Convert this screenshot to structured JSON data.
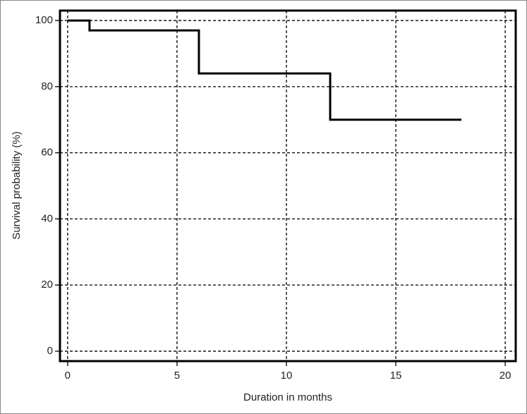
{
  "chart_data": {
    "type": "line",
    "step": "post",
    "x_label": "Duration in months",
    "y_label": "Survival probability (%)",
    "x": [
      0,
      1,
      6,
      12,
      18
    ],
    "series": [
      {
        "color": "#000000",
        "values": [
          100,
          97,
          84,
          70,
          70
        ]
      }
    ],
    "xlim": [
      -0.35,
      20.48
    ],
    "xticks": [
      0,
      5,
      10,
      15,
      20
    ],
    "ylim": [
      -3,
      103
    ],
    "yticks": [
      0,
      20,
      40,
      60,
      80,
      100
    ],
    "grid": true
  }
}
